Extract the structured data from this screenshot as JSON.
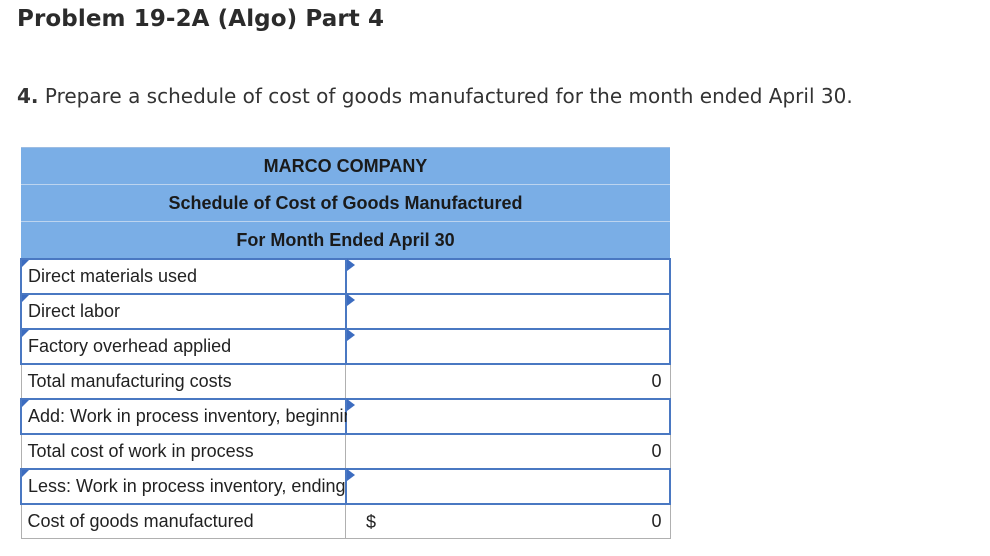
{
  "page": {
    "title": "Problem 19-2A (Algo) Part 4",
    "instruction_number": "4.",
    "instruction_text": " Prepare a schedule of cost of goods manufactured for the month ended April 30."
  },
  "schedule": {
    "company": "MARCO COMPANY",
    "report_name": "Schedule of Cost of Goods Manufactured",
    "period": "For Month Ended April 30",
    "rows": [
      {
        "label": "Direct materials used",
        "value": "",
        "dollar": ""
      },
      {
        "label": "Direct labor",
        "value": "",
        "dollar": ""
      },
      {
        "label": "Factory overhead applied",
        "value": "",
        "dollar": ""
      },
      {
        "label": "Total manufacturing costs",
        "value": "0",
        "dollar": ""
      },
      {
        "label": "Add: Work in process inventory, beginning",
        "value": "",
        "dollar": ""
      },
      {
        "label": "Total cost of work in process",
        "value": "0",
        "dollar": ""
      },
      {
        "label": "Less: Work in process inventory, ending",
        "value": "",
        "dollar": ""
      },
      {
        "label": "Cost of goods manufactured",
        "value": "0",
        "dollar": "$"
      }
    ]
  },
  "colors": {
    "header_bg": "#7aaee6",
    "input_border": "#4a78c2"
  }
}
